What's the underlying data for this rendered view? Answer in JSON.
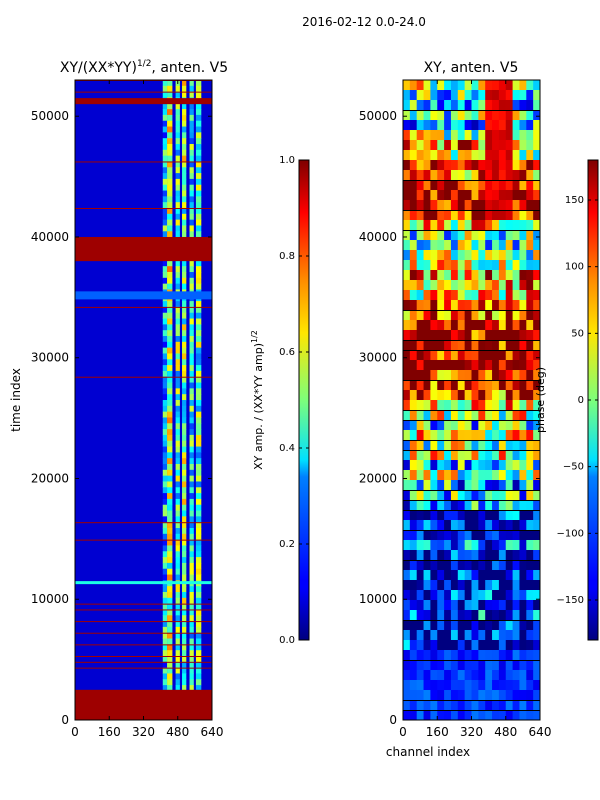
{
  "figure": {
    "suptitle": "2016-02-12 0.0-24.0"
  },
  "chart_data": [
    {
      "type": "heatmap",
      "title_main": "XY/(XX*YY)",
      "title_exponent": "1/2",
      "title_suffix": ", anten. V5",
      "xlabel": "",
      "ylabel": "time index",
      "xlim": [
        0,
        640
      ],
      "ylim": [
        0,
        53000
      ],
      "xticks": [
        0,
        160,
        320,
        480,
        640
      ],
      "yticks": [
        0,
        10000,
        20000,
        30000,
        40000,
        50000
      ],
      "colorbar": {
        "label_main": "XY amp. / (XX*YY amp)",
        "label_exponent": "1/2",
        "range": [
          0.0,
          1.0
        ],
        "ticks": [
          "0.0",
          "0.2",
          "0.4",
          "0.6",
          "0.8",
          "1.0"
        ],
        "colormap": "jet"
      },
      "saturated_time_bands": [
        [
          0,
          2500
        ],
        [
          38000,
          40000
        ],
        [
          51000,
          51500
        ]
      ]
    },
    {
      "type": "heatmap",
      "title": "XY, anten. V5",
      "xlabel": "channel index",
      "ylabel": "",
      "xlim": [
        0,
        640
      ],
      "ylim": [
        0,
        53000
      ],
      "xticks": [
        0,
        160,
        320,
        480,
        640
      ],
      "yticks": [
        0,
        10000,
        20000,
        30000,
        40000,
        50000
      ],
      "colorbar": {
        "label": "phase (deg)",
        "range": [
          -180,
          180
        ],
        "ticks": [
          "150",
          "100",
          "50",
          "0",
          "−50",
          "−100",
          "−150"
        ],
        "colormap": "jet"
      }
    }
  ],
  "colors": {
    "jet_low": "#00007f",
    "jet_high": "#7f0000",
    "axis": "#000000"
  }
}
